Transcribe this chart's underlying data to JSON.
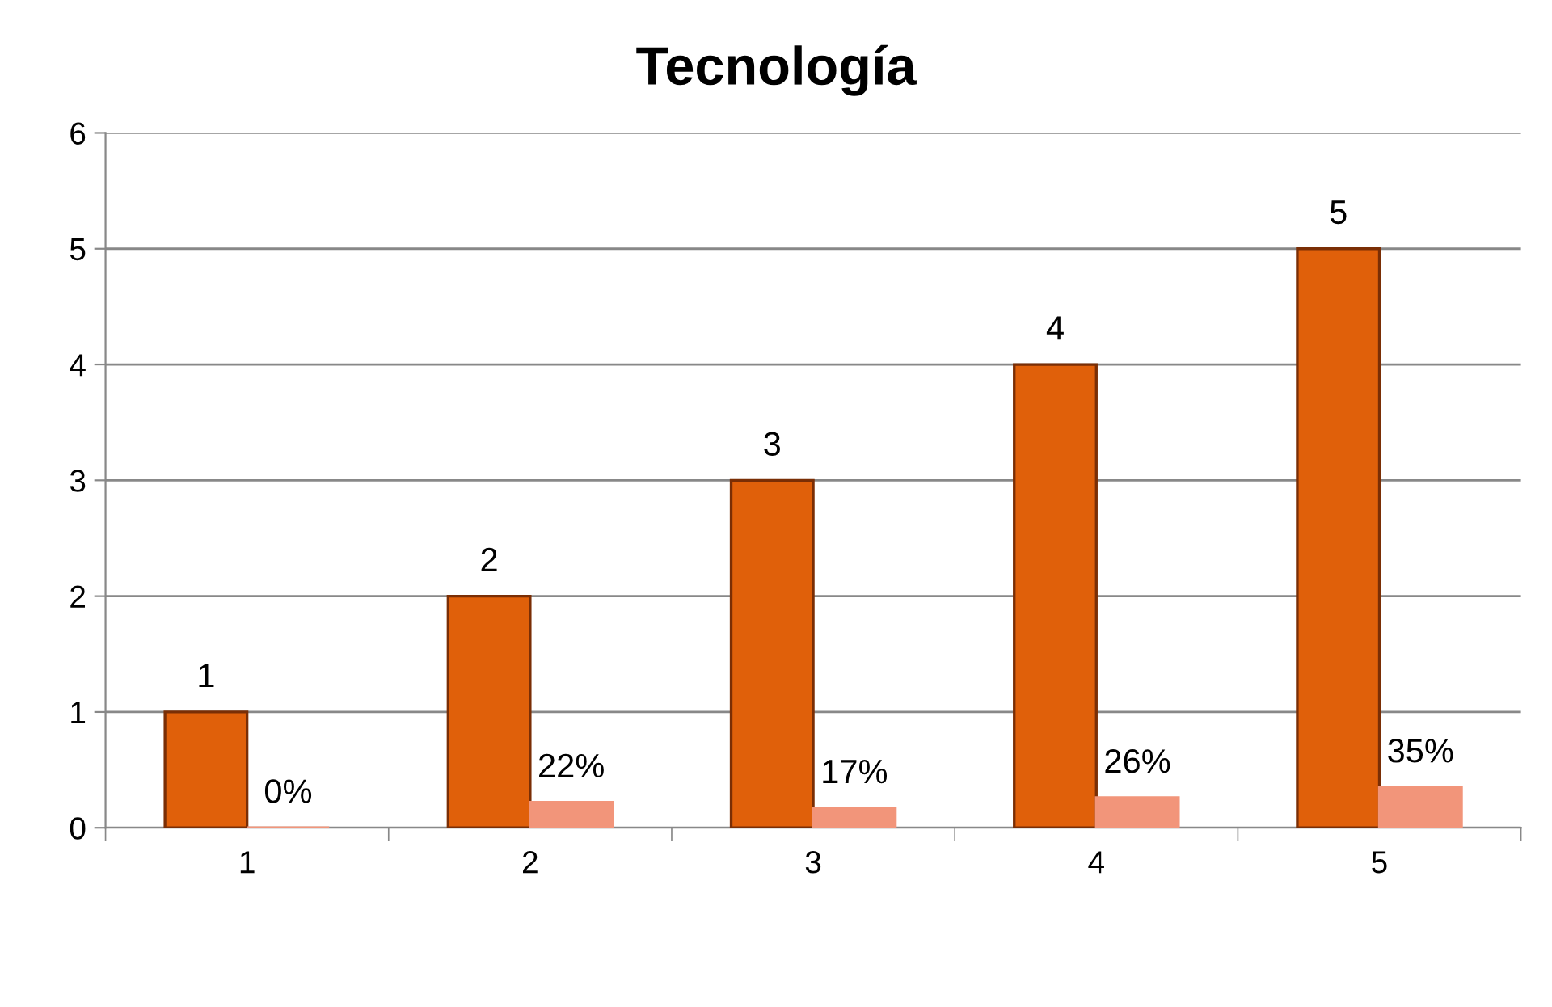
{
  "chart_data": {
    "type": "bar",
    "title": "Tecnología",
    "categories": [
      "1",
      "2",
      "3",
      "4",
      "5"
    ],
    "series": [
      {
        "color": "#e0600a",
        "values": [
          1,
          2,
          3,
          4,
          5
        ],
        "value_labels": [
          "1",
          "2",
          "3",
          "4",
          "5"
        ]
      },
      {
        "color": "#f2957a",
        "values": [
          0,
          0.22,
          0.17,
          0.26,
          0.35
        ],
        "value_labels": [
          "0%",
          "22%",
          "17%",
          "26%",
          "35%"
        ]
      }
    ],
    "ylim": [
      0,
      6
    ],
    "yticks": [
      0,
      1,
      2,
      3,
      4,
      5,
      6
    ],
    "grid": "y"
  }
}
